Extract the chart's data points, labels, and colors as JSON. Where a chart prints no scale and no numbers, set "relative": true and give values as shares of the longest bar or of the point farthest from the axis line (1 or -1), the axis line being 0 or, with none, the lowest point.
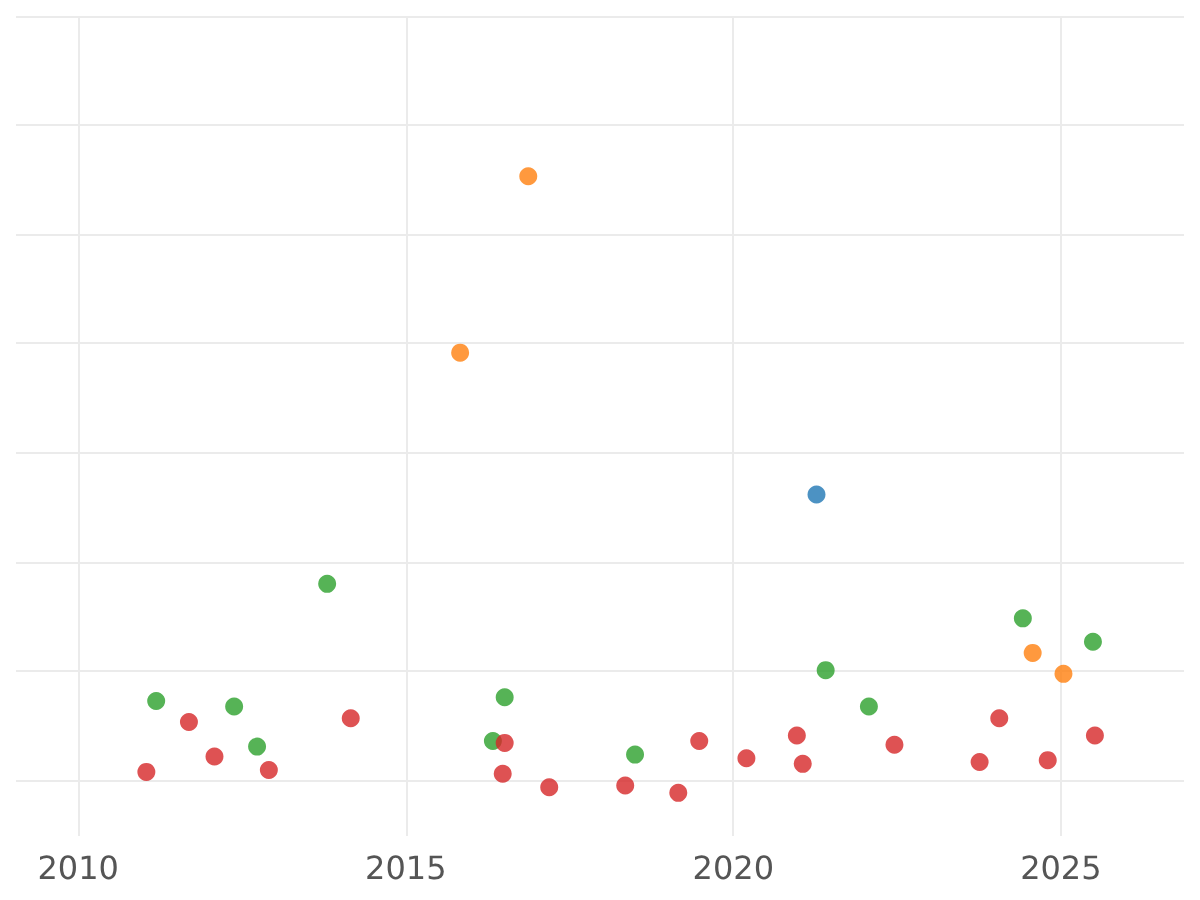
{
  "chart_data": {
    "type": "scatter",
    "relative": true,
    "grid": true,
    "marker": "circle",
    "xlim": [
      2009.05,
      2026.88
    ],
    "xticks": [
      2010,
      2015,
      2020,
      2025
    ],
    "series": [
      {
        "color": "#2ca02c",
        "x": [
          2011.19,
          2012.38,
          2012.73,
          2013.8,
          2016.33,
          2016.51,
          2018.5,
          2021.41,
          2022.07,
          2024.42,
          2025.49
        ],
        "values": [
          0.149,
          0.14,
          0.075,
          0.339,
          0.084,
          0.155,
          0.062,
          0.199,
          0.14,
          0.283,
          0.245
        ]
      },
      {
        "color": "#d62728",
        "x": [
          2011.04,
          2011.69,
          2012.08,
          2012.91,
          2014.16,
          2016.51,
          2016.48,
          2017.19,
          2018.35,
          2019.16,
          2019.48,
          2020.2,
          2020.97,
          2021.06,
          2022.46,
          2023.76,
          2024.06,
          2024.8,
          2025.52
        ],
        "values": [
          0.034,
          0.115,
          0.059,
          0.037,
          0.121,
          0.081,
          0.031,
          0.009,
          0.012,
          0,
          0.084,
          0.056,
          0.093,
          0.047,
          0.078,
          0.05,
          0.121,
          0.053,
          0.093
        ]
      },
      {
        "color": "#ff7f0e",
        "x": [
          2015.83,
          2016.87,
          2024.57,
          2025.04
        ],
        "values": [
          0.714,
          1,
          0.227,
          0.193
        ]
      },
      {
        "color": "#1f77b4",
        "x": [
          2021.27
        ],
        "values": [
          0.484
        ]
      }
    ]
  }
}
